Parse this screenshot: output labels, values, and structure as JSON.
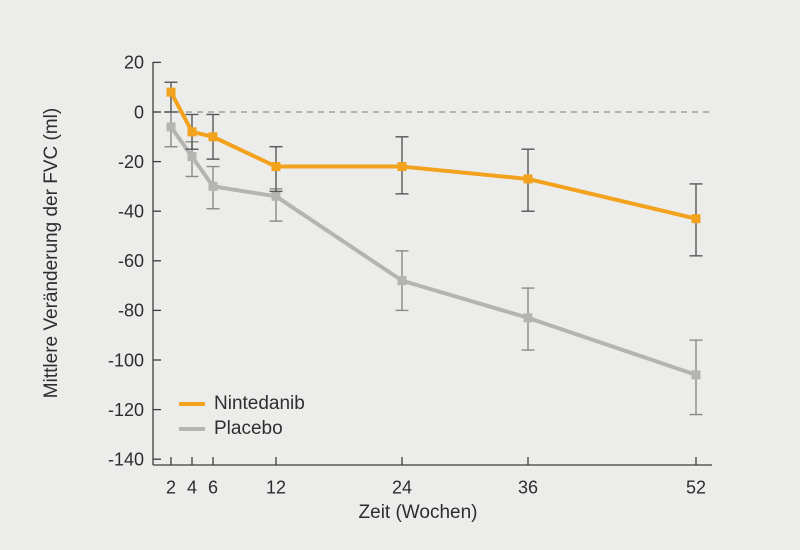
{
  "page": {
    "background": "#ECECEA"
  },
  "chart_data": {
    "type": "line",
    "title": "",
    "xlabel": "Zeit (Wochen)",
    "ylabel": "Mittlere Veränderung der FVC (ml)",
    "x_weeks": [
      2,
      4,
      6,
      12,
      24,
      36,
      52
    ],
    "x_tick_labels": [
      "2",
      "4",
      "6",
      "12",
      "24",
      "36",
      "52"
    ],
    "y_ticks": [
      20,
      0,
      -20,
      -40,
      -60,
      -80,
      -100,
      -120,
      -140
    ],
    "ylim": [
      -140,
      20
    ],
    "xlim": [
      2,
      52
    ],
    "grid": "off",
    "legend_position": "inside-bottom-left",
    "axis_color": "#3C3C3C",
    "text_color": "#2D2D2D",
    "zero_reference_line": {
      "value": 0,
      "style": "dashed",
      "color": "#8F8F8F"
    },
    "series": [
      {
        "name": "Nintedanib",
        "color": "#F2A21D",
        "error_bar_color": "#575757",
        "marker": "square",
        "values": [
          8,
          -8,
          -10,
          -22,
          -22,
          -27,
          -43
        ],
        "ci_high": [
          12,
          -1,
          -1,
          -14,
          -10,
          -15,
          -29
        ],
        "ci_low": [
          0,
          -15,
          -19,
          -32,
          -33,
          -40,
          -58
        ]
      },
      {
        "name": "Placebo",
        "color": "#B4B4B2",
        "error_bar_color": "#8A8A88",
        "marker": "square",
        "values": [
          -6,
          -18,
          -30,
          -34,
          -68,
          -83,
          -106
        ],
        "ci_high": [
          0,
          -12,
          -22,
          -31,
          -56,
          -71,
          -92
        ],
        "ci_low": [
          -14,
          -26,
          -39,
          -44,
          -80,
          -96,
          -122
        ]
      }
    ]
  }
}
